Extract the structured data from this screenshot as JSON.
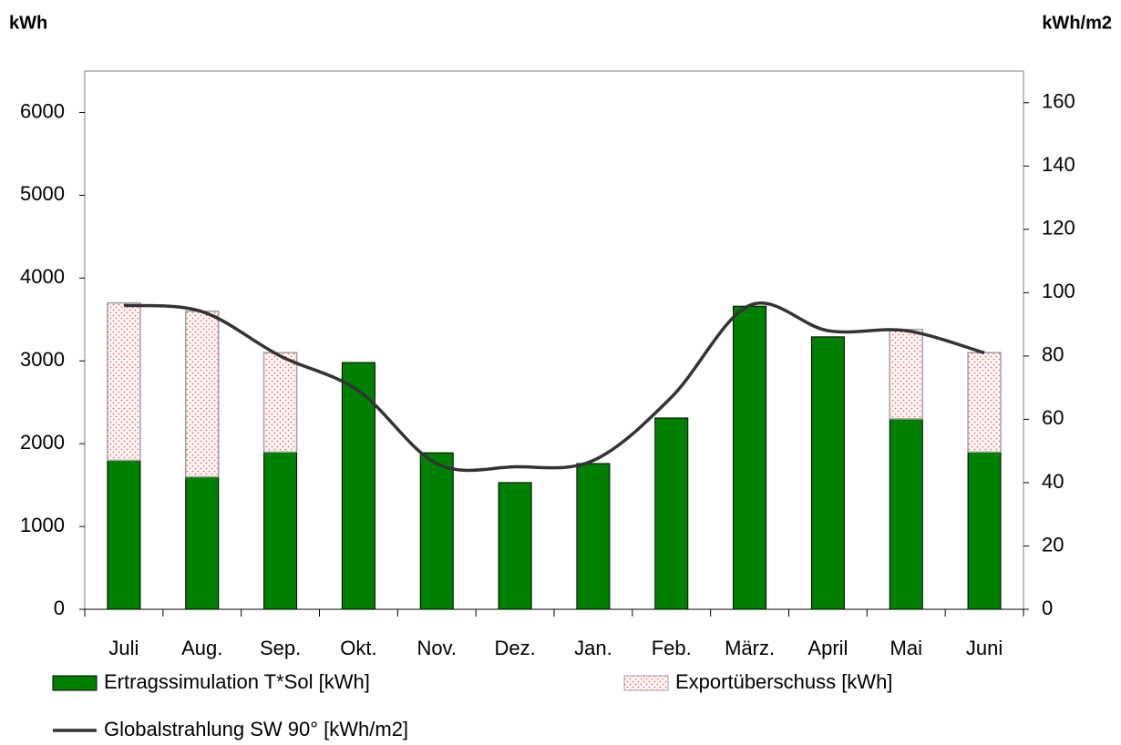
{
  "chart_data": {
    "type": "bar",
    "categories": [
      "Juli",
      "Aug.",
      "Sep.",
      "Okt.",
      "Nov.",
      "Dez.",
      "Jan.",
      "Feb.",
      "März.",
      "April",
      "Mai",
      "Juni"
    ],
    "y_label": "kWh",
    "y2_label": "kWh/m2",
    "series": [
      {
        "name": "Ertragssimulation T*Sol [kWh]",
        "color": "#008000",
        "stacked": true,
        "values": [
          1800,
          1600,
          1900,
          2980,
          1890,
          1530,
          1760,
          2310,
          3660,
          3290,
          2300,
          1900
        ]
      },
      {
        "name": "Exportüberschuss [kWh]",
        "color": "#ff6060",
        "stacked": true,
        "values": [
          1900,
          2000,
          1200,
          0,
          0,
          0,
          0,
          0,
          0,
          0,
          1080,
          1200
        ]
      },
      {
        "name": "Globalstrahlung SW 90° [kWh/m2]",
        "color": "#333333",
        "type": "line",
        "axis": "y2",
        "values": [
          96,
          94,
          80,
          69,
          46,
          45,
          47,
          67,
          96,
          88,
          88,
          81
        ]
      }
    ],
    "ylim": [
      0,
      6500
    ],
    "yticks": [
      0,
      1000,
      2000,
      3000,
      4000,
      5000,
      6000
    ],
    "y2lim": [
      0,
      170
    ],
    "y2ticks": [
      0,
      20,
      40,
      60,
      80,
      100,
      120,
      140,
      160
    ]
  }
}
